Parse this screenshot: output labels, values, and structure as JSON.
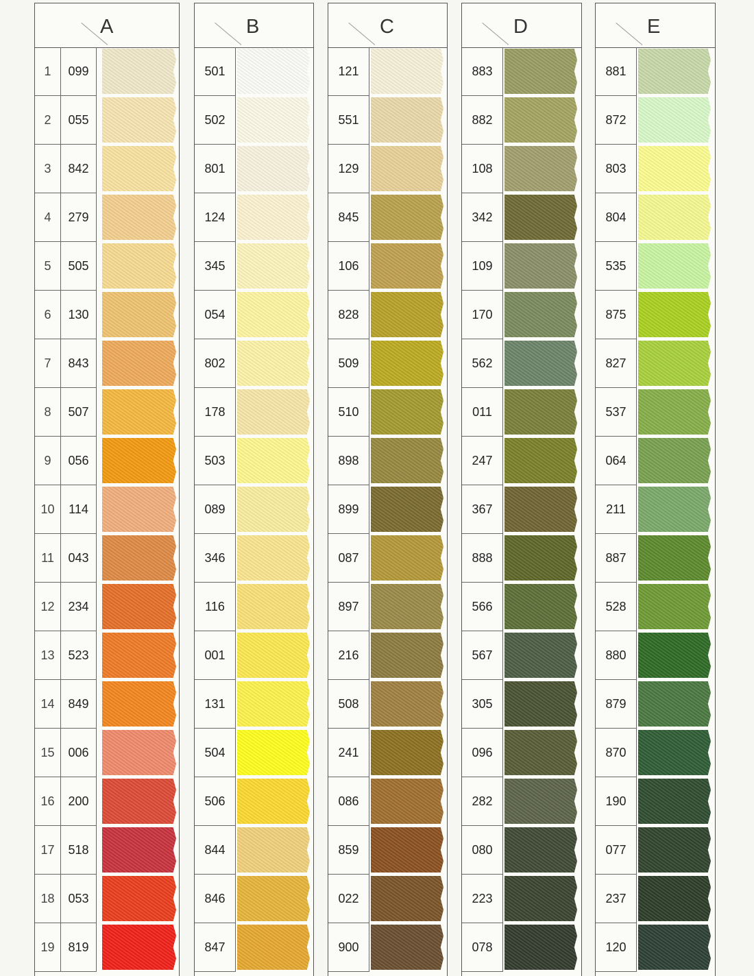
{
  "row_numbers": [
    "1",
    "2",
    "3",
    "4",
    "5",
    "6",
    "7",
    "8",
    "9",
    "10",
    "11",
    "12",
    "13",
    "14",
    "15",
    "16",
    "17",
    "18",
    "19"
  ],
  "columns": [
    {
      "letter": "A",
      "codes": [
        "099",
        "055",
        "842",
        "279",
        "505",
        "130",
        "843",
        "507",
        "056",
        "114",
        "043",
        "234",
        "523",
        "849",
        "006",
        "200",
        "518",
        "053",
        "819"
      ],
      "colors": [
        "#efe8c8",
        "#f7e4b0",
        "#f8e2a0",
        "#f3cf8e",
        "#f7da90",
        "#efc270",
        "#eeaa5a",
        "#f4b840",
        "#f29a10",
        "#f1ae7c",
        "#de8a45",
        "#e56e28",
        "#ef7a26",
        "#f3861e",
        "#ef8a6c",
        "#dd4a36",
        "#c8323c",
        "#ea3d1c",
        "#f0201a"
      ]
    },
    {
      "letter": "B",
      "codes": [
        "501",
        "502",
        "801",
        "124",
        "345",
        "054",
        "802",
        "178",
        "503",
        "089",
        "346",
        "116",
        "001",
        "131",
        "504",
        "506",
        "844",
        "846",
        "847"
      ],
      "colors": [
        "#fbfbf6",
        "#fbf8e6",
        "#f7f2de",
        "#fbf2d0",
        "#fcf4bc",
        "#fdf5a0",
        "#fcf3a8",
        "#f6e6a8",
        "#fdf78e",
        "#f9ed9e",
        "#f9e68e",
        "#f9e078",
        "#fbe850",
        "#fcf24c",
        "#fefe1e",
        "#fcd830",
        "#f0d07c",
        "#e6b43a",
        "#e6a830"
      ]
    },
    {
      "letter": "C",
      "codes": [
        "121",
        "551",
        "129",
        "845",
        "106",
        "828",
        "509",
        "510",
        "898",
        "899",
        "087",
        "897",
        "216",
        "508",
        "241",
        "086",
        "859",
        "022",
        "900"
      ],
      "colors": [
        "#f6f0d8",
        "#ead8a8",
        "#e8d098",
        "#b8a04c",
        "#c0a050",
        "#b8a028",
        "#bcaa20",
        "#a49a30",
        "#968840",
        "#7a6a30",
        "#b49838",
        "#9a8a48",
        "#8c7a40",
        "#a08040",
        "#8c7020",
        "#a06e30",
        "#8a5020",
        "#7a5428",
        "#6a4e30"
      ]
    },
    {
      "letter": "D",
      "codes": [
        "883",
        "882",
        "108",
        "342",
        "109",
        "170",
        "562",
        "011",
        "247",
        "367",
        "888",
        "566",
        "567",
        "305",
        "096",
        "282",
        "080",
        "223",
        "078"
      ],
      "colors": [
        "#9a9c62",
        "#a4a462",
        "#a29e6e",
        "#6e6a34",
        "#8a8e68",
        "#7a8a5c",
        "#6c8468",
        "#7a7e3a",
        "#7a8028",
        "#6e6432",
        "#5e6628",
        "#5c6e38",
        "#4c5e44",
        "#4a5232",
        "#585c36",
        "#5c6448",
        "#3e4a34",
        "#3a4430",
        "#323a2c"
      ]
    },
    {
      "letter": "E",
      "codes": [
        "881",
        "872",
        "803",
        "804",
        "535",
        "875",
        "827",
        "537",
        "064",
        "211",
        "887",
        "528",
        "880",
        "879",
        "870",
        "190",
        "077",
        "237",
        "120"
      ],
      "colors": [
        "#c8d8a8",
        "#d8f8c8",
        "#fcfc90",
        "#f4f890",
        "#c8f4a0",
        "#aad020",
        "#a8d03c",
        "#86ae48",
        "#78a050",
        "#7aa86a",
        "#5c8a2c",
        "#6e9a34",
        "#2e6a24",
        "#4a7840",
        "#2e5c34",
        "#2e4c30",
        "#30442c",
        "#2c3c28",
        "#2c4034"
      ]
    }
  ]
}
